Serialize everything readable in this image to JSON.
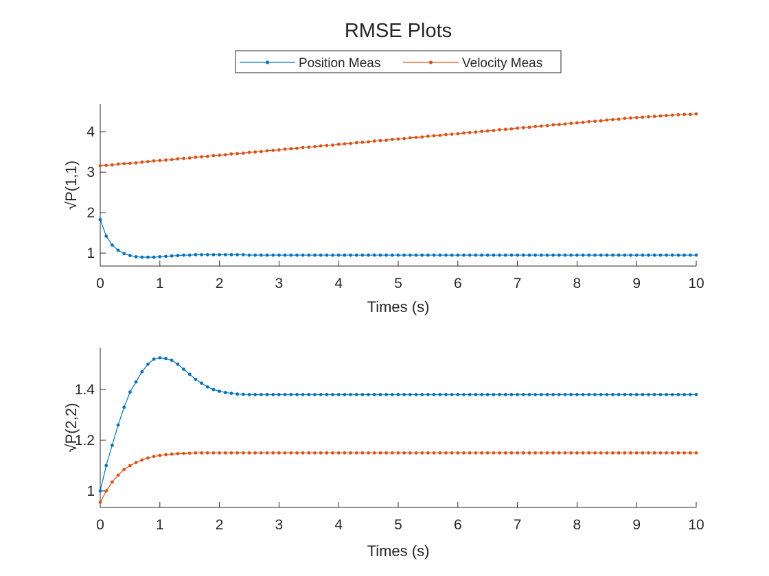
{
  "figure_title": "RMSE Plots",
  "legend": {
    "placement": "top-center",
    "entries": [
      {
        "name": "Position Meas",
        "color": "#0072BD"
      },
      {
        "name": "Velocity Meas",
        "color": "#D95319"
      }
    ]
  },
  "colors": {
    "axis": "#262626",
    "background": "#ffffff"
  },
  "chart_data": [
    {
      "type": "line",
      "title": "",
      "xlabel": "Times (s)",
      "ylabel": "√P(1,1)",
      "xlim": [
        0,
        10
      ],
      "ylim": [
        0.68,
        4.68
      ],
      "xticks": [
        "0",
        "1",
        "2",
        "3",
        "4",
        "5",
        "6",
        "7",
        "8",
        "9",
        "10"
      ],
      "yticks": [
        "1",
        "2",
        "3",
        "4"
      ],
      "grid": false,
      "x_step": 0.1,
      "series": [
        {
          "name": "Position Meas",
          "color": "#0072BD",
          "values": [
            1.83,
            1.42,
            1.2,
            1.07,
            0.99,
            0.94,
            0.91,
            0.9,
            0.9,
            0.9,
            0.91,
            0.92,
            0.93,
            0.94,
            0.95,
            0.95,
            0.96,
            0.96,
            0.96,
            0.96,
            0.96,
            0.96,
            0.96,
            0.96,
            0.96,
            0.95,
            0.95,
            0.95,
            0.95,
            0.95,
            0.95,
            0.95,
            0.95,
            0.95,
            0.95,
            0.95,
            0.95,
            0.95,
            0.95,
            0.95,
            0.95,
            0.95,
            0.95,
            0.95,
            0.95,
            0.95,
            0.95,
            0.95,
            0.95,
            0.95,
            0.95,
            0.95,
            0.95,
            0.95,
            0.95,
            0.95,
            0.95,
            0.95,
            0.95,
            0.95,
            0.95,
            0.95,
            0.95,
            0.95,
            0.95,
            0.95,
            0.95,
            0.95,
            0.95,
            0.95,
            0.95,
            0.95,
            0.95,
            0.95,
            0.95,
            0.95,
            0.95,
            0.95,
            0.95,
            0.95,
            0.95,
            0.95,
            0.95,
            0.95,
            0.95,
            0.95,
            0.95,
            0.95,
            0.95,
            0.95,
            0.95,
            0.95,
            0.95,
            0.95,
            0.95,
            0.95,
            0.95,
            0.95,
            0.95,
            0.95,
            0.95
          ]
        },
        {
          "name": "Velocity Meas",
          "color": "#D95319",
          "values": [
            3.16,
            3.17,
            3.18,
            3.2,
            3.21,
            3.22,
            3.23,
            3.25,
            3.26,
            3.28,
            3.29,
            3.3,
            3.31,
            3.33,
            3.34,
            3.35,
            3.37,
            3.38,
            3.39,
            3.41,
            3.42,
            3.43,
            3.45,
            3.46,
            3.47,
            3.49,
            3.5,
            3.51,
            3.53,
            3.54,
            3.55,
            3.57,
            3.58,
            3.59,
            3.61,
            3.62,
            3.63,
            3.65,
            3.66,
            3.67,
            3.69,
            3.7,
            3.71,
            3.73,
            3.74,
            3.75,
            3.77,
            3.78,
            3.79,
            3.81,
            3.82,
            3.83,
            3.85,
            3.86,
            3.87,
            3.89,
            3.9,
            3.91,
            3.93,
            3.94,
            3.95,
            3.97,
            3.98,
            3.99,
            4.01,
            4.02,
            4.03,
            4.05,
            4.06,
            4.07,
            4.09,
            4.1,
            4.11,
            4.13,
            4.14,
            4.15,
            4.17,
            4.18,
            4.19,
            4.21,
            4.22,
            4.23,
            4.25,
            4.26,
            4.27,
            4.29,
            4.3,
            4.31,
            4.33,
            4.34,
            4.35,
            4.36,
            4.37,
            4.38,
            4.39,
            4.4,
            4.41,
            4.42,
            4.43,
            4.43,
            4.44
          ]
        }
      ]
    },
    {
      "type": "line",
      "title": "",
      "xlabel": "Times (s)",
      "ylabel": "√P(2,2)",
      "xlim": [
        0,
        10
      ],
      "ylim": [
        0.935,
        1.565
      ],
      "xticks": [
        "0",
        "1",
        "2",
        "3",
        "4",
        "5",
        "6",
        "7",
        "8",
        "9",
        "10"
      ],
      "yticks": [
        "1",
        "1.2",
        "1.4"
      ],
      "grid": false,
      "x_step": 0.1,
      "series": [
        {
          "name": "Position Meas",
          "color": "#0072BD",
          "values": [
            1.0,
            1.1,
            1.18,
            1.26,
            1.33,
            1.39,
            1.43,
            1.47,
            1.5,
            1.52,
            1.525,
            1.522,
            1.515,
            1.5,
            1.48,
            1.46,
            1.44,
            1.425,
            1.41,
            1.4,
            1.393,
            1.388,
            1.385,
            1.382,
            1.381,
            1.38,
            1.38,
            1.38,
            1.38,
            1.38,
            1.38,
            1.38,
            1.38,
            1.38,
            1.38,
            1.38,
            1.38,
            1.38,
            1.38,
            1.38,
            1.38,
            1.38,
            1.38,
            1.38,
            1.38,
            1.38,
            1.38,
            1.38,
            1.38,
            1.38,
            1.38,
            1.38,
            1.38,
            1.38,
            1.38,
            1.38,
            1.38,
            1.38,
            1.38,
            1.38,
            1.38,
            1.38,
            1.38,
            1.38,
            1.38,
            1.38,
            1.38,
            1.38,
            1.38,
            1.38,
            1.38,
            1.38,
            1.38,
            1.38,
            1.38,
            1.38,
            1.38,
            1.38,
            1.38,
            1.38,
            1.38,
            1.38,
            1.38,
            1.38,
            1.38,
            1.38,
            1.38,
            1.38,
            1.38,
            1.38,
            1.38,
            1.38,
            1.38,
            1.38,
            1.38,
            1.38,
            1.38,
            1.38,
            1.38,
            1.38,
            1.38
          ]
        },
        {
          "name": "Velocity Meas",
          "color": "#D95319",
          "values": [
            0.955,
            1.0,
            1.035,
            1.062,
            1.085,
            1.1,
            1.112,
            1.122,
            1.13,
            1.136,
            1.14,
            1.143,
            1.145,
            1.147,
            1.148,
            1.149,
            1.15,
            1.15,
            1.15,
            1.15,
            1.15,
            1.15,
            1.15,
            1.15,
            1.15,
            1.15,
            1.15,
            1.15,
            1.15,
            1.15,
            1.15,
            1.15,
            1.15,
            1.15,
            1.15,
            1.15,
            1.15,
            1.15,
            1.15,
            1.15,
            1.15,
            1.15,
            1.15,
            1.15,
            1.15,
            1.15,
            1.15,
            1.15,
            1.15,
            1.15,
            1.15,
            1.15,
            1.15,
            1.15,
            1.15,
            1.15,
            1.15,
            1.15,
            1.15,
            1.15,
            1.15,
            1.15,
            1.15,
            1.15,
            1.15,
            1.15,
            1.15,
            1.15,
            1.15,
            1.15,
            1.15,
            1.15,
            1.15,
            1.15,
            1.15,
            1.15,
            1.15,
            1.15,
            1.15,
            1.15,
            1.15,
            1.15,
            1.15,
            1.15,
            1.15,
            1.15,
            1.15,
            1.15,
            1.15,
            1.15,
            1.15,
            1.15,
            1.15,
            1.15,
            1.15,
            1.15,
            1.15,
            1.15,
            1.15,
            1.15,
            1.15
          ]
        }
      ]
    }
  ]
}
